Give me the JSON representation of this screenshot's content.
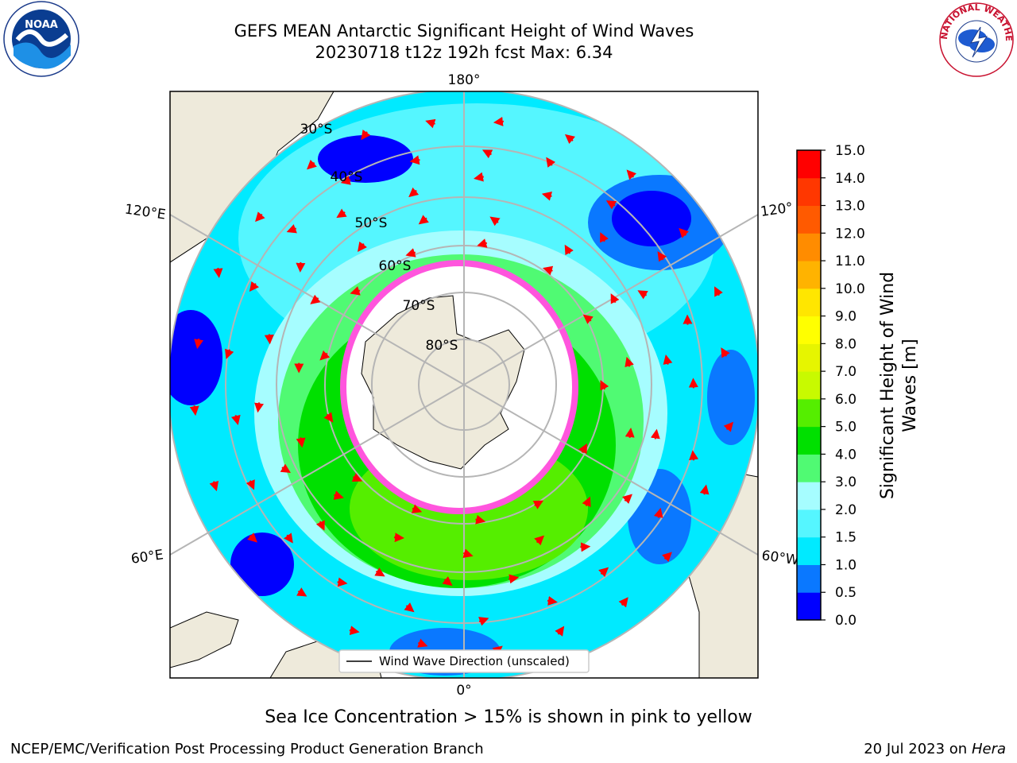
{
  "title": {
    "line1": "GEFS MEAN Antarctic Significant Height of Wind Waves",
    "line2": "20230718 t12z 192h fcst   Max: 6.34"
  },
  "map": {
    "projection": "south-polar-stereographic",
    "longitude_labels": [
      "180°",
      "120°E",
      "120°",
      "60°E",
      "60°W",
      "0°"
    ],
    "latitude_labels": [
      "30°S",
      "40°S",
      "50°S",
      "60°S",
      "70°S",
      "80°S"
    ],
    "legend_entry": "Wind Wave Direction (unscaled)",
    "colors": {
      "land": "#eeeadb",
      "ice": "#ffffff",
      "ice_edge": "#ff55dd",
      "arrow": "#ff0000",
      "grid": "#b5b5b5"
    }
  },
  "colorbar": {
    "label": "Significant Height of Wind Waves [m]",
    "label_line1": "Significant Height of Wind",
    "label_line2": "Waves [m]",
    "ticks": [
      "0.0",
      "0.5",
      "1.0",
      "1.5",
      "2.0",
      "3.0",
      "4.0",
      "5.0",
      "6.0",
      "7.0",
      "8.0",
      "9.0",
      "10.0",
      "11.0",
      "12.0",
      "13.0",
      "14.0",
      "15.0"
    ],
    "colors": [
      "#0000ff",
      "#0a78ff",
      "#00eaff",
      "#55f6ff",
      "#a6fdff",
      "#50fa73",
      "#00e000",
      "#55ee00",
      "#c8fa00",
      "#e6f500",
      "#ffff00",
      "#ffe600",
      "#ffb300",
      "#ff8c00",
      "#ff5a00",
      "#ff3700",
      "#ff0000"
    ]
  },
  "caption": "Sea Ice Concentration > 15% is shown in pink to yellow",
  "footer": {
    "left": "NCEP/EMC/Verification Post Processing Product Generation Branch",
    "right_prefix": "20 Jul 2023 on ",
    "right_machine": "Hera"
  },
  "logos": {
    "left": "NOAA",
    "right_text": "NATIONAL WEATHER SERVICE"
  }
}
